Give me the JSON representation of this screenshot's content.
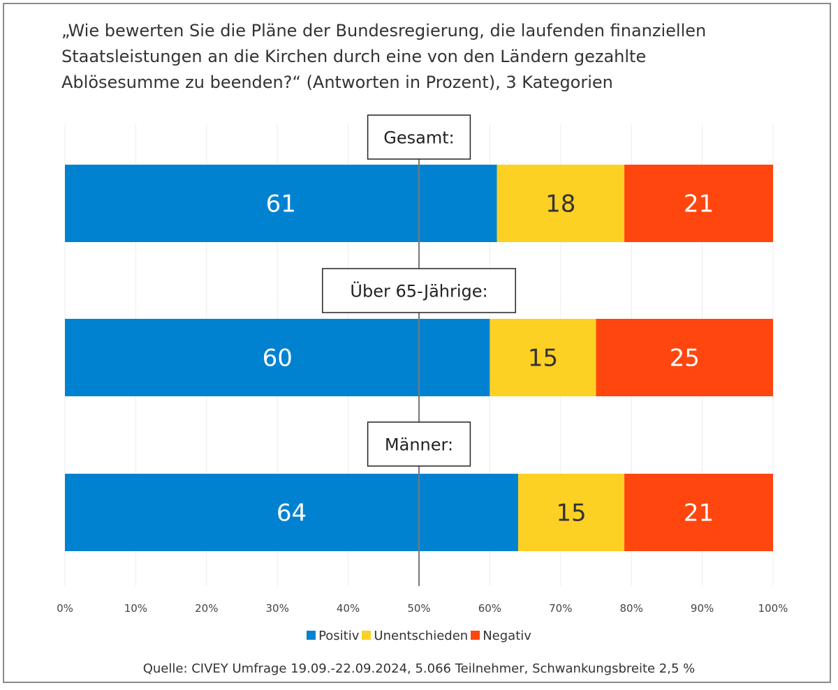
{
  "chart_data": {
    "type": "bar",
    "orientation": "horizontal",
    "stacked": true,
    "title_lines": [
      "„Wie bewerten Sie die Pläne der Bundesregierung, die laufenden finanziellen",
      "Staatsleistungen an die Kirchen durch eine von den Ländern gezahlte",
      "Ablösesumme zu beenden?“ (Antworten in Prozent), 3 Kategorien"
    ],
    "categories": [
      "Gesamt:",
      "Über 65-Jährige:",
      "Männer:"
    ],
    "series": [
      {
        "name": "Positiv",
        "values": [
          61,
          60,
          64
        ],
        "color": "#0082d1",
        "label_color": "#ffffff"
      },
      {
        "name": "Unentschieden",
        "values": [
          18,
          15,
          15
        ],
        "color": "#fdd024",
        "label_color": "#333333"
      },
      {
        "name": "Negativ",
        "values": [
          21,
          25,
          21
        ],
        "color": "#ff460f",
        "label_color": "#ffffff"
      }
    ],
    "data_labels": [
      [
        "61",
        "18",
        "21"
      ],
      [
        "60",
        "15",
        "25"
      ],
      [
        "64",
        "15",
        "21"
      ]
    ],
    "xlim": [
      0,
      100
    ],
    "x_ticks": [
      0,
      10,
      20,
      30,
      40,
      50,
      60,
      70,
      80,
      90,
      100
    ],
    "x_tick_labels": [
      "0%",
      "10%",
      "20%",
      "30%",
      "40%",
      "50%",
      "60%",
      "70%",
      "80%",
      "90%",
      "100%"
    ],
    "reference_line": 50,
    "grid": true,
    "legend_position": "bottom",
    "source": "Quelle: CIVEY Umfrage 19.09.-22.09.2024, 5.066 Teilnehmer, Schwankungsbreite 2,5 %"
  }
}
